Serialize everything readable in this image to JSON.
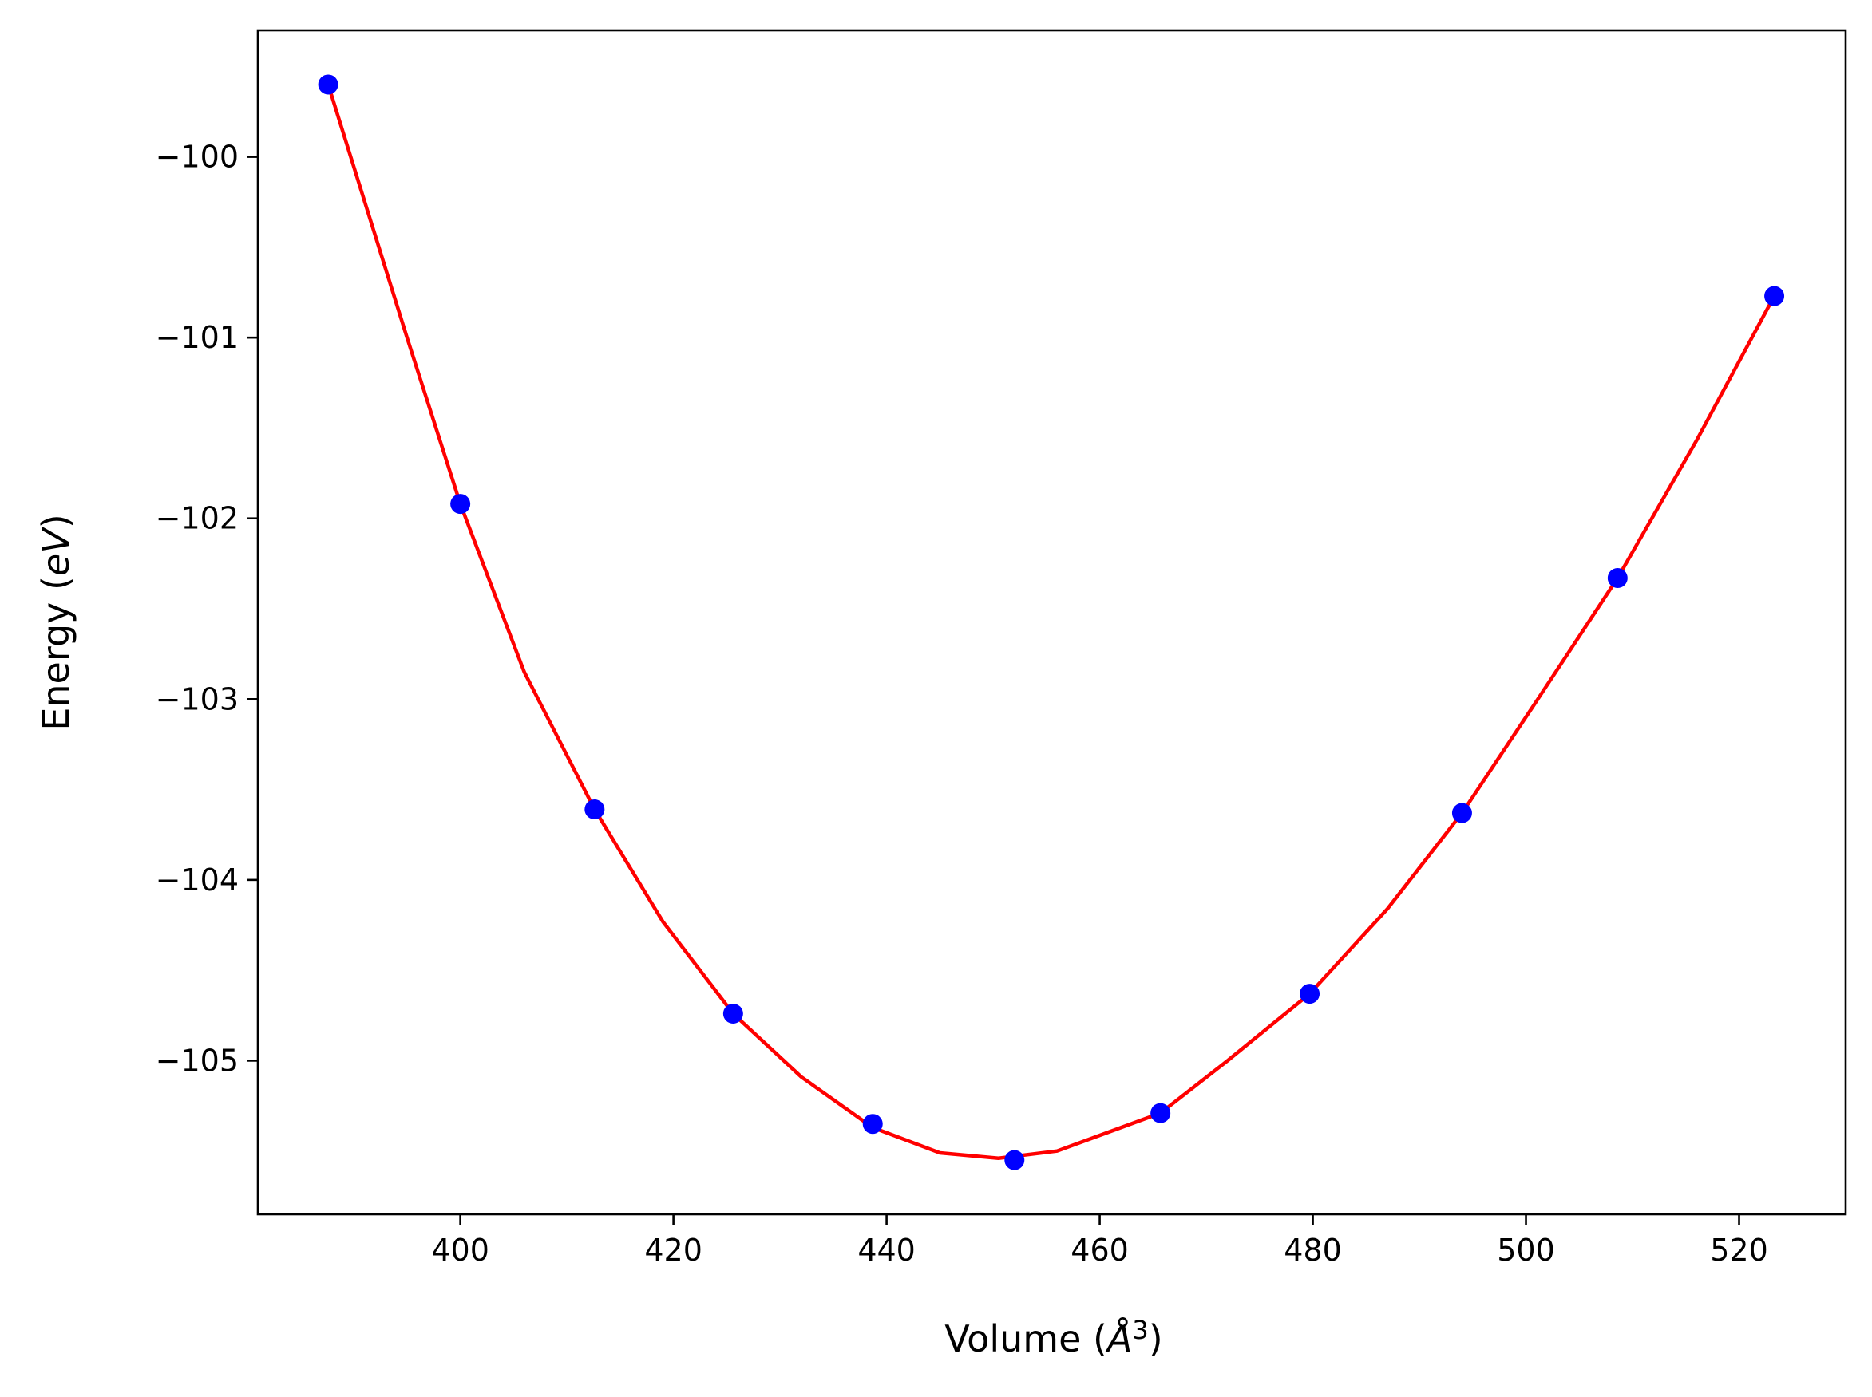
{
  "chart_data": {
    "type": "scatter",
    "title": "",
    "xlabel": "Volume (Å³)",
    "xlabel_parts": {
      "prefix": "Volume (",
      "symbol": "Å",
      "superscript": "3",
      "suffix": ")"
    },
    "ylabel": "Energy (eV)",
    "ylabel_parts": {
      "prefix": "Energy (",
      "italic": "eV",
      "suffix": ")"
    },
    "xlim": [
      381,
      530
    ],
    "ylim": [
      -105.85,
      -99.3
    ],
    "x_ticks": [
      400,
      420,
      440,
      460,
      480,
      500,
      520
    ],
    "x_tick_labels": [
      "400",
      "420",
      "440",
      "460",
      "480",
      "500",
      "520"
    ],
    "y_ticks": [
      -100,
      -101,
      -102,
      -103,
      -104,
      -105
    ],
    "y_tick_labels": [
      "−100",
      "−101",
      "−102",
      "−103",
      "−104",
      "−105"
    ],
    "grid": false,
    "series": [
      {
        "kind": "points",
        "color": "#0000ff",
        "x": [
          387.6,
          400.0,
          412.6,
          425.6,
          438.7,
          452.0,
          465.7,
          479.7,
          494.0,
          508.6,
          523.3
        ],
        "y": [
          -99.6,
          -101.92,
          -103.61,
          -104.74,
          -105.35,
          -105.55,
          -105.29,
          -104.63,
          -103.63,
          -102.33,
          -100.77
        ]
      },
      {
        "kind": "fit-line",
        "color": "#ff0000",
        "x": [
          387.6,
          395.0,
          400.0,
          406.0,
          412.6,
          419.0,
          425.6,
          432.0,
          438.7,
          445.0,
          450.5,
          456.0,
          465.7,
          472.0,
          479.7,
          487.0,
          494.0,
          501.0,
          508.6,
          516.0,
          523.3
        ],
        "y": [
          -99.6,
          -101.0,
          -101.92,
          -102.85,
          -103.61,
          -104.23,
          -104.74,
          -105.09,
          -105.37,
          -105.51,
          -105.54,
          -105.5,
          -105.29,
          -105.0,
          -104.63,
          -104.16,
          -103.63,
          -103.01,
          -102.33,
          -101.57,
          -100.77
        ]
      }
    ]
  }
}
